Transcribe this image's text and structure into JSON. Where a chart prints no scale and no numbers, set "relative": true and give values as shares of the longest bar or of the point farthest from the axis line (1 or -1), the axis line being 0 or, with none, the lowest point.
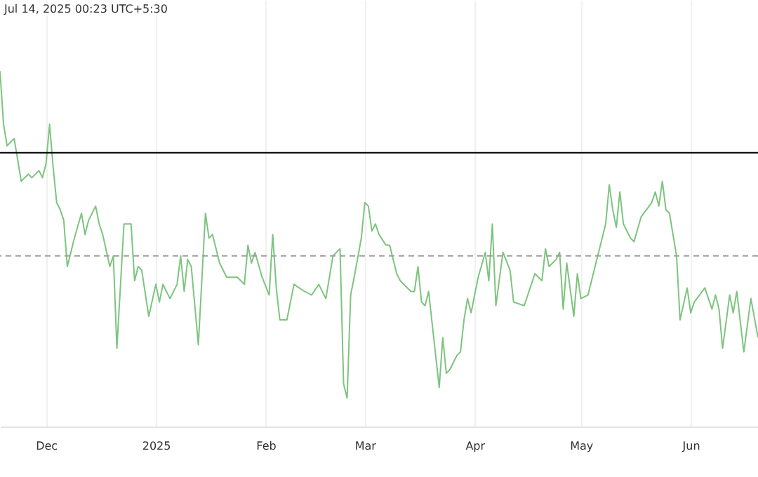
{
  "chart_data": {
    "type": "line",
    "relative": true,
    "annotations": [
      "Jul 14, 2025 00:23 UTC+5:30"
    ],
    "x": [
      "2024-11-18",
      "2024-11-19",
      "2024-11-20",
      "2024-11-22",
      "2024-11-23",
      "2024-11-24",
      "2024-11-26",
      "2024-11-27",
      "2024-11-29",
      "2024-11-30",
      "2024-12-01",
      "2024-12-02",
      "2024-12-03",
      "2024-12-04",
      "2024-12-05",
      "2024-12-06",
      "2024-12-07",
      "2024-12-09",
      "2024-12-11",
      "2024-12-12",
      "2024-12-13",
      "2024-12-15",
      "2024-12-16",
      "2024-12-17",
      "2024-12-19",
      "2024-12-20",
      "2024-12-21",
      "2024-12-23",
      "2024-12-25",
      "2024-12-26",
      "2024-12-27",
      "2024-12-28",
      "2024-12-30",
      "2025-01-01",
      "2025-01-02",
      "2025-01-03",
      "2025-01-05",
      "2025-01-07",
      "2025-01-08",
      "2025-01-09",
      "2025-01-10",
      "2025-01-11",
      "2025-01-13",
      "2025-01-15",
      "2025-01-16",
      "2025-01-17",
      "2025-01-19",
      "2025-01-21",
      "2025-01-24",
      "2025-01-26",
      "2025-01-27",
      "2025-01-28",
      "2025-01-29",
      "2025-01-31",
      "2025-02-02",
      "2025-02-03",
      "2025-02-04",
      "2025-02-05",
      "2025-02-07",
      "2025-02-09",
      "2025-02-12",
      "2025-02-14",
      "2025-02-16",
      "2025-02-18",
      "2025-02-20",
      "2025-02-22",
      "2025-02-23",
      "2025-02-24",
      "2025-02-25",
      "2025-02-26",
      "2025-02-28",
      "2025-03-01",
      "2025-03-02",
      "2025-03-03",
      "2025-03-04",
      "2025-03-05",
      "2025-03-07",
      "2025-03-08",
      "2025-03-10",
      "2025-03-11",
      "2025-03-14",
      "2025-03-15",
      "2025-03-16",
      "2025-03-17",
      "2025-03-18",
      "2025-03-19",
      "2025-03-22",
      "2025-03-23",
      "2025-03-24",
      "2025-03-25",
      "2025-03-27",
      "2025-03-28",
      "2025-03-29",
      "2025-03-30",
      "2025-03-31",
      "2025-04-02",
      "2025-04-04",
      "2025-04-05",
      "2025-04-06",
      "2025-04-07",
      "2025-04-09",
      "2025-04-11",
      "2025-04-12",
      "2025-04-15",
      "2025-04-18",
      "2025-04-20",
      "2025-04-21",
      "2025-04-22",
      "2025-04-24",
      "2025-04-25",
      "2025-04-26",
      "2025-04-27",
      "2025-04-29",
      "2025-04-30",
      "2025-05-01",
      "2025-05-03",
      "2025-05-06",
      "2025-05-08",
      "2025-05-09",
      "2025-05-10",
      "2025-05-11",
      "2025-05-12",
      "2025-05-13",
      "2025-05-15",
      "2025-05-16",
      "2025-05-18",
      "2025-05-21",
      "2025-05-22",
      "2025-05-23",
      "2025-05-24",
      "2025-05-25",
      "2025-05-26",
      "2025-05-28",
      "2025-05-29",
      "2025-05-31",
      "2025-06-01",
      "2025-06-02",
      "2025-06-05",
      "2025-06-07",
      "2025-06-08",
      "2025-06-09",
      "2025-06-10",
      "2025-06-12",
      "2025-06-13",
      "2025-06-14",
      "2025-06-16",
      "2025-06-18",
      "2025-06-20"
    ],
    "series": [
      {
        "color": "#7dc47f",
        "values": [
          1.0,
          0.85,
          0.79,
          0.81,
          0.75,
          0.69,
          0.71,
          0.7,
          0.72,
          0.7,
          0.74,
          0.85,
          0.73,
          0.63,
          0.61,
          0.58,
          0.45,
          0.53,
          0.6,
          0.54,
          0.58,
          0.62,
          0.57,
          0.54,
          0.45,
          0.48,
          0.22,
          0.57,
          0.57,
          0.41,
          0.45,
          0.44,
          0.31,
          0.4,
          0.35,
          0.4,
          0.36,
          0.4,
          0.48,
          0.38,
          0.47,
          0.45,
          0.23,
          0.6,
          0.53,
          0.54,
          0.46,
          0.42,
          0.42,
          0.4,
          0.51,
          0.46,
          0.49,
          0.42,
          0.37,
          0.54,
          0.39,
          0.3,
          0.3,
          0.4,
          0.38,
          0.37,
          0.4,
          0.36,
          0.48,
          0.5,
          0.12,
          0.08,
          0.37,
          0.42,
          0.53,
          0.63,
          0.62,
          0.55,
          0.57,
          0.54,
          0.51,
          0.51,
          0.43,
          0.41,
          0.38,
          0.38,
          0.45,
          0.35,
          0.34,
          0.38,
          0.11,
          0.25,
          0.15,
          0.16,
          0.2,
          0.21,
          0.3,
          0.36,
          0.32,
          0.42,
          0.49,
          0.41,
          0.57,
          0.34,
          0.49,
          0.44,
          0.35,
          0.34,
          0.43,
          0.41,
          0.5,
          0.45,
          0.47,
          0.49,
          0.33,
          0.46,
          0.31,
          0.43,
          0.36,
          0.37,
          0.49,
          0.57,
          0.68,
          0.61,
          0.56,
          0.66,
          0.57,
          0.53,
          0.52,
          0.59,
          0.63,
          0.66,
          0.62,
          0.69,
          0.61,
          0.6,
          0.48,
          0.3,
          0.39,
          0.32,
          0.35,
          0.39,
          0.33,
          0.37,
          0.33,
          0.22,
          0.37,
          0.32,
          0.38,
          0.21,
          0.36,
          0.25
        ]
      }
    ],
    "xlim": [
      "2024-11-18",
      "2025-06-20"
    ],
    "xticks": [
      {
        "value": "2024-12-01",
        "label": "Dec"
      },
      {
        "value": "2025-01-01",
        "label": "2025"
      },
      {
        "value": "2025-02-01",
        "label": "Feb"
      },
      {
        "value": "2025-03-01",
        "label": "Mar"
      },
      {
        "value": "2025-04-01",
        "label": "Apr"
      },
      {
        "value": "2025-05-01",
        "label": "May"
      },
      {
        "value": "2025-06-01",
        "label": "Jun"
      }
    ],
    "ref_lines": [
      {
        "axis": "y",
        "value": 0.77,
        "color": "#000000",
        "line_style": "solid"
      },
      {
        "axis": "y",
        "value": 0.48,
        "color": "#9e9e9e",
        "line_style": "dashed"
      }
    ],
    "grid": "x"
  }
}
